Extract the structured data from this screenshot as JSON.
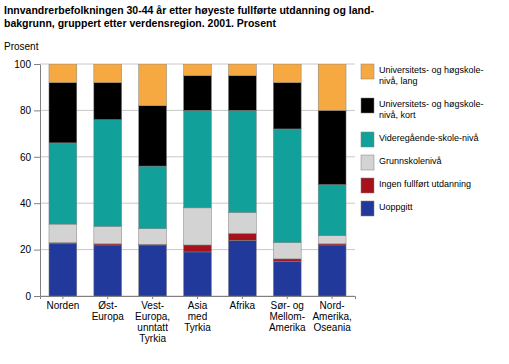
{
  "chart_data": {
    "type": "bar",
    "stacked": true,
    "title": "Innvandrerbefolkningen 30-44 år etter høyeste fullførte utdanning og land-\nbakgrunn, gruppert etter verdensregion. 2001. Prosent",
    "y_label": "Prosent",
    "categories": [
      "Norden",
      "Øst-\nEuropa",
      "Vest-\nEuropa,\nunntatt\nTyrkia",
      "Asia\nmed\nTyrkia",
      "Afrika",
      "Sør- og\nMellom-\nAmerika",
      "Nord-\nAmerika,\nOseania"
    ],
    "series": [
      {
        "name": "Uoppgitt",
        "color": "#21399a",
        "values": [
          22.5,
          22,
          22,
          19,
          24,
          15,
          22
        ]
      },
      {
        "name": "Ingen fullført utdanning",
        "color": "#a6121c",
        "values": [
          0.5,
          0.5,
          0.3,
          3,
          3,
          1,
          0.5
        ]
      },
      {
        "name": "Grunnskolenivå",
        "color": "#d3d3d3",
        "values": [
          8,
          7.5,
          6.7,
          16,
          9,
          7,
          3.5
        ]
      },
      {
        "name": "Videregående-skole-nivå",
        "color": "#12a19a",
        "values": [
          35,
          46,
          27,
          42,
          44,
          49,
          22
        ]
      },
      {
        "name": "Universitets- og høgskole-\nnivå, kort",
        "color": "#000000",
        "values": [
          26,
          16,
          26,
          15,
          15,
          20,
          32
        ]
      },
      {
        "name": "Universitets- og høgskole-\nnivå, lang",
        "color": "#f7a941",
        "values": [
          8,
          8,
          18,
          5,
          5,
          8,
          20
        ]
      }
    ],
    "ylim": [
      0,
      100
    ],
    "yticks": [
      0,
      20,
      40,
      60,
      80,
      100
    ],
    "grid": true,
    "legend": "right"
  }
}
